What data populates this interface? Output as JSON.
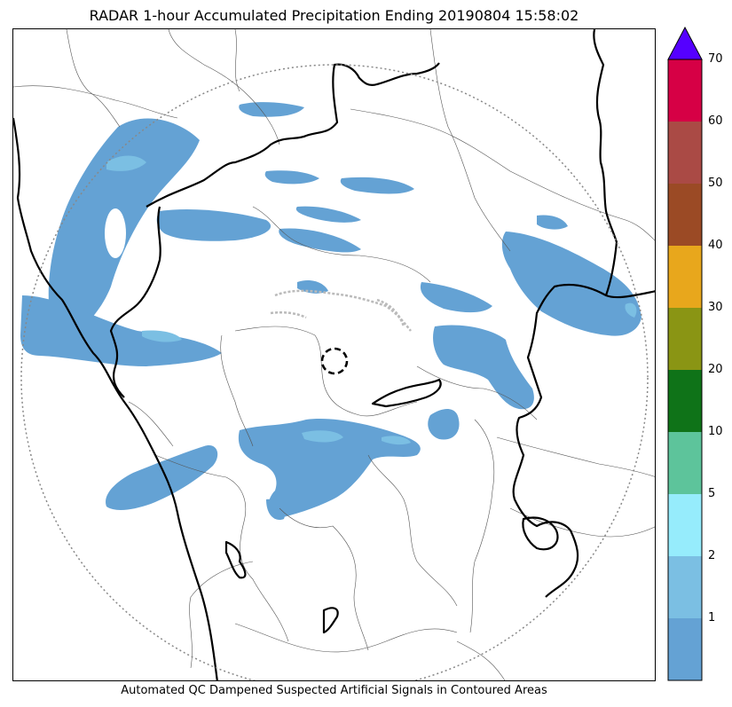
{
  "title": "RADAR 1-hour Accumulated Precipitation Ending 20190804 15:58:02",
  "caption": "Automated QC Dampened Suspected Artificial Signals in Contoured Areas",
  "colors": {
    "precip_light": "#64a2d4",
    "precip_mid": "#7bbfe3",
    "state_border": "#000000",
    "district_border": "#555555",
    "qc_contour": "#bbbbbb",
    "range_ring": "#888888"
  },
  "colorbar": {
    "extend_arrow_color": "#5500ff",
    "levels": [
      {
        "label": "",
        "color": "#64a2d4"
      },
      {
        "label": "1",
        "color": "#7bbfe3"
      },
      {
        "label": "2",
        "color": "#96ecfc"
      },
      {
        "label": "5",
        "color": "#5dc49b"
      },
      {
        "label": "10",
        "color": "#0f7318"
      },
      {
        "label": "20",
        "color": "#8a9514"
      },
      {
        "label": "30",
        "color": "#e8a71c"
      },
      {
        "label": "40",
        "color": "#9b4a25"
      },
      {
        "label": "50",
        "color": "#aa4a45"
      },
      {
        "label": "60",
        "color": "#d60045"
      },
      {
        "label": "70",
        "color": ""
      }
    ]
  }
}
